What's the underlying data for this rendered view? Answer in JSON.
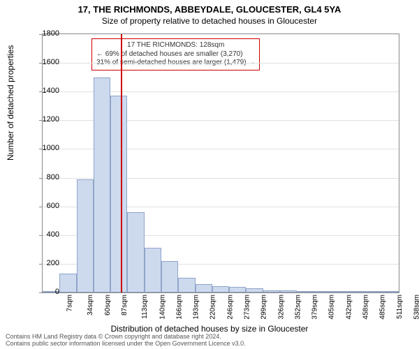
{
  "title": "17, THE RICHMONDS, ABBEYDALE, GLOUCESTER, GL4 5YA",
  "subtitle": "Size of property relative to detached houses in Gloucester",
  "chart": {
    "type": "histogram",
    "ylabel": "Number of detached properties",
    "xlabel": "Distribution of detached houses by size in Gloucester",
    "ylim": [
      0,
      1800
    ],
    "ytick_step": 200,
    "x_categories": [
      "7sqm",
      "34sqm",
      "60sqm",
      "87sqm",
      "113sqm",
      "140sqm",
      "166sqm",
      "193sqm",
      "220sqm",
      "246sqm",
      "273sqm",
      "299sqm",
      "326sqm",
      "352sqm",
      "379sqm",
      "405sqm",
      "432sqm",
      "458sqm",
      "485sqm",
      "511sqm",
      "538sqm"
    ],
    "bar_values": [
      0,
      130,
      790,
      1500,
      1370,
      560,
      310,
      220,
      100,
      60,
      45,
      40,
      30,
      15,
      15,
      8,
      5,
      5,
      3,
      3,
      2
    ],
    "bar_fill": "#cdd9ed",
    "bar_border": "#8fa5c9",
    "grid_color": "#e0e0e0",
    "axis_color": "#888888",
    "reference_line": {
      "position_index": 4.6,
      "color": "#cc0000"
    },
    "annotation": {
      "line1": "17 THE RICHMONDS: 128sqm",
      "line2": "← 69% of detached houses are smaller (3,270)",
      "line3": "31% of semi-detached houses are larger (1,479) →",
      "border_color": "#cc0000"
    }
  },
  "footer": {
    "line1": "Contains HM Land Registry data © Crown copyright and database right 2024.",
    "line2": "Contains public sector information licensed under the Open Government Licence v3.0."
  }
}
